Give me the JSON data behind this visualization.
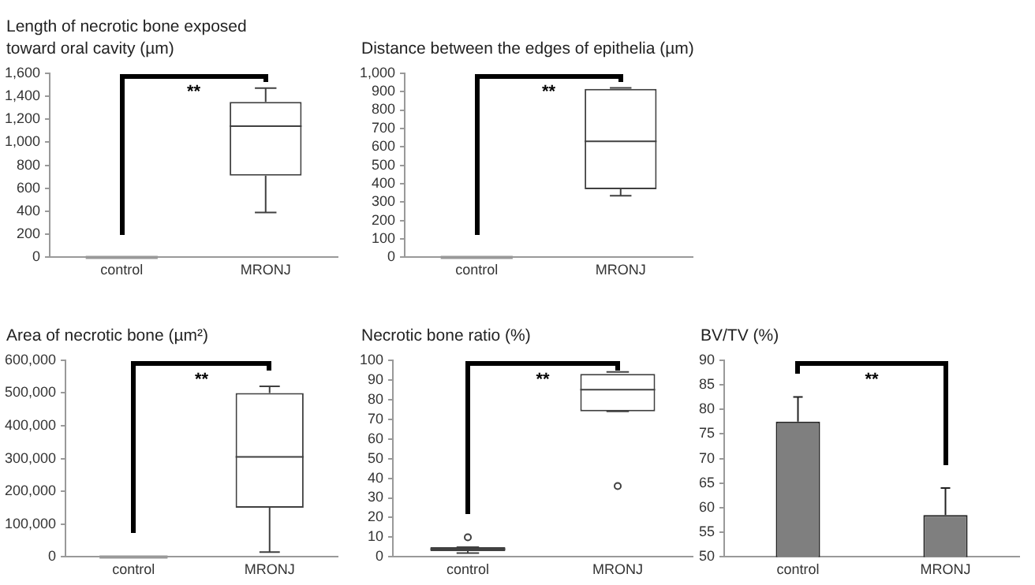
{
  "chart_data": [
    {
      "type": "box",
      "title": "Length of necrotic bone exposed toward oral cavity (µm)",
      "categories": [
        "control",
        "MRONJ"
      ],
      "color": "#404040",
      "boxes": [
        {
          "low": 0,
          "q1": 0,
          "median": 0,
          "q3": 0,
          "high": 0
        },
        {
          "low": 390,
          "q1": 710,
          "median": 1140,
          "q3": 1350,
          "high": 1470
        }
      ],
      "ylim": [
        0,
        1600
      ],
      "yticks": [
        0,
        200,
        400,
        600,
        800,
        {
          "value": 1000,
          "label": "1,000"
        },
        {
          "value": 1200,
          "label": "1,200"
        },
        {
          "value": 1400,
          "label": "1,400"
        },
        {
          "value": 1600,
          "label": "1,600"
        }
      ],
      "annotations": [
        "**"
      ]
    },
    {
      "type": "box",
      "title": "Distance between the edges of epithelia (µm)",
      "categories": [
        "control",
        "MRONJ"
      ],
      "color": "#404040",
      "boxes": [
        {
          "low": 0,
          "q1": 0,
          "median": 0,
          "q3": 0,
          "high": 0
        },
        {
          "low": 335,
          "q1": 370,
          "median": 630,
          "q3": 915,
          "high": 920
        }
      ],
      "ylim": [
        0,
        1000
      ],
      "yticks": [
        0,
        100,
        200,
        300,
        400,
        500,
        600,
        700,
        800,
        900,
        {
          "value": 1000,
          "label": "1,000"
        }
      ],
      "annotations": [
        "**"
      ]
    },
    {
      "type": "box",
      "title": "Area of necrotic bone (µm²)",
      "categories": [
        "control",
        "MRONJ"
      ],
      "color": "#404040",
      "boxes": [
        {
          "low": 0,
          "q1": 0,
          "median": 0,
          "q3": 0,
          "high": 0
        },
        {
          "low": 15000,
          "q1": 150000,
          "median": 305000,
          "q3": 500000,
          "high": 520000
        }
      ],
      "ylim": [
        0,
        600000
      ],
      "yticks": [
        0,
        {
          "value": 100000,
          "label": "100,000"
        },
        {
          "value": 200000,
          "label": "200,000"
        },
        {
          "value": 300000,
          "label": "300,000"
        },
        {
          "value": 400000,
          "label": "400,000"
        },
        {
          "value": 500000,
          "label": "500,000"
        },
        {
          "value": 600000,
          "label": "600,000"
        }
      ],
      "annotations": [
        "**"
      ]
    },
    {
      "type": "box",
      "title": "Necrotic bone ratio (%)",
      "categories": [
        "control",
        "MRONJ"
      ],
      "color": "#404040",
      "boxes": [
        {
          "low": 2,
          "q1": 3,
          "median": 4,
          "q3": 5,
          "high": 5,
          "outliers": [
            10
          ]
        },
        {
          "low": 74,
          "q1": 74,
          "median": 85,
          "q3": 93,
          "high": 94,
          "outliers": [
            36
          ]
        }
      ],
      "ylim": [
        0,
        100
      ],
      "yticks": [
        0,
        10,
        20,
        30,
        40,
        50,
        60,
        70,
        80,
        90,
        100
      ],
      "annotations": [
        "**"
      ]
    },
    {
      "type": "bar",
      "title": "BV/TV (%)",
      "categories": [
        "control",
        "MRONJ"
      ],
      "color": "#7f7f7f",
      "values": [
        77.5,
        58.5
      ],
      "errors": [
        [
          77.5,
          82.5
        ],
        [
          58.5,
          64
        ]
      ],
      "ylim": [
        50,
        90
      ],
      "yticks": [
        50,
        55,
        60,
        65,
        70,
        75,
        80,
        85,
        90
      ],
      "annotations": [
        "**"
      ]
    }
  ]
}
